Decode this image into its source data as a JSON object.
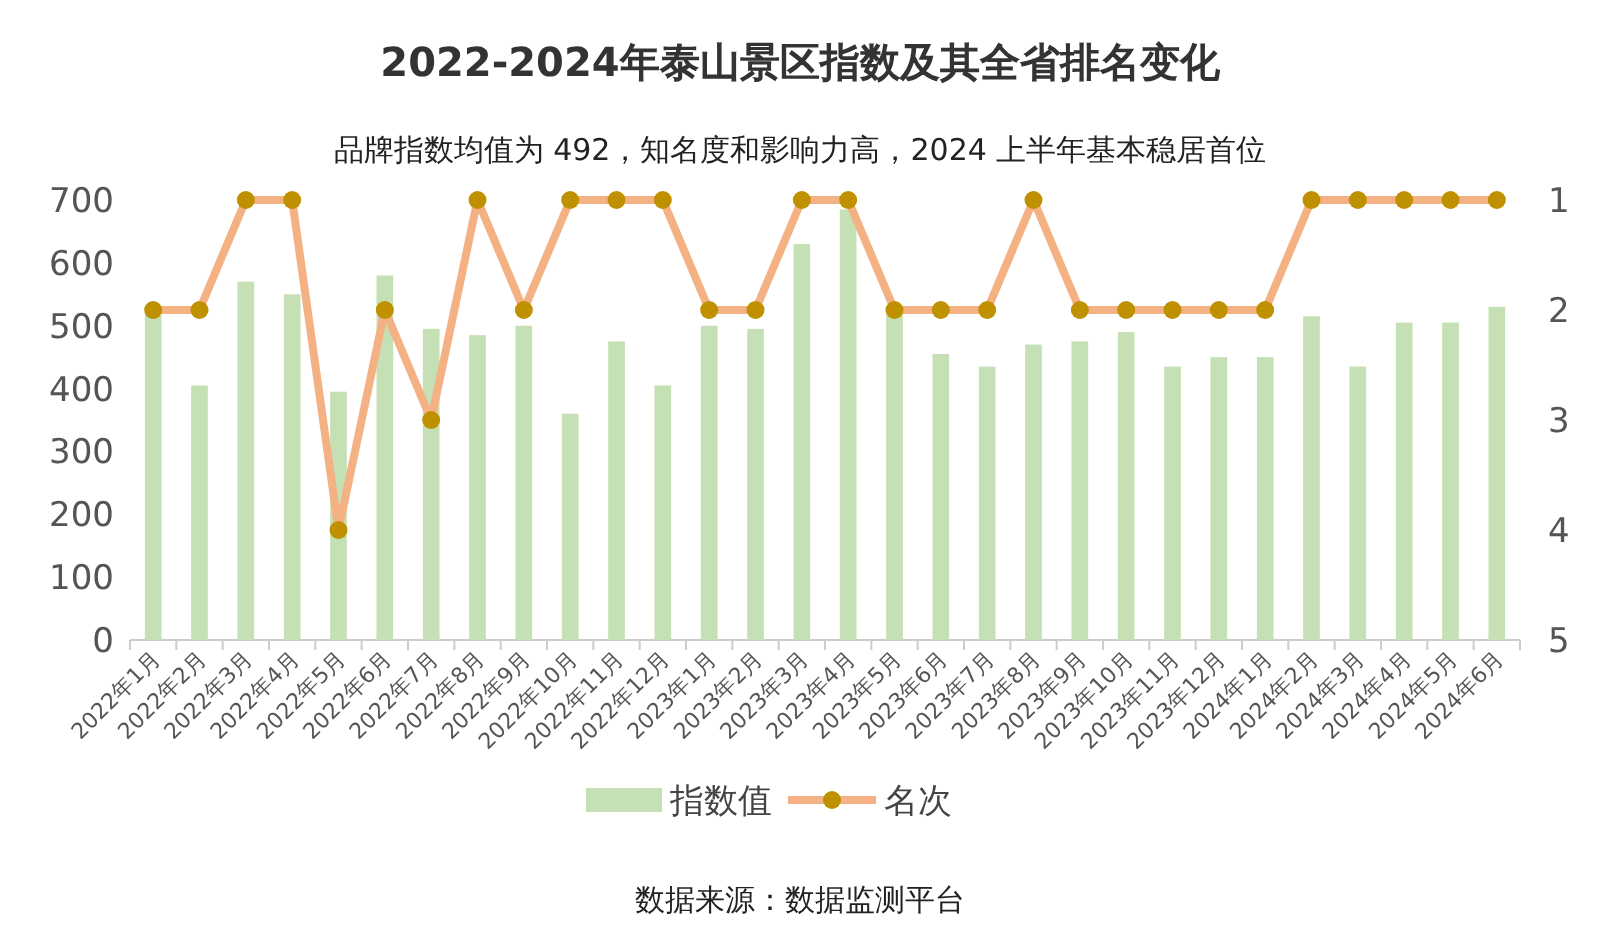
{
  "chart_data": {
    "type": "bar",
    "title": "2022-2024年泰山景区指数及其全省排名变化",
    "subtitle": "品牌指数均值为 492，知名度和影响力高，2024 上半年基本稳居首位",
    "categories": [
      "2022年1月",
      "2022年2月",
      "2022年3月",
      "2022年4月",
      "2022年5月",
      "2022年6月",
      "2022年7月",
      "2022年8月",
      "2022年9月",
      "2022年10月",
      "2022年11月",
      "2022年12月",
      "2023年1月",
      "2023年2月",
      "2023年3月",
      "2023年4月",
      "2023年5月",
      "2023年6月",
      "2023年7月",
      "2023年8月",
      "2023年9月",
      "2023年10月",
      "2023年11月",
      "2023年12月",
      "2024年1月",
      "2024年2月",
      "2024年3月",
      "2024年4月",
      "2024年5月",
      "2024年6月"
    ],
    "series": [
      {
        "name": "指数值",
        "color": "#c5e0b4",
        "values": [
          520,
          405,
          570,
          550,
          395,
          580,
          495,
          485,
          500,
          360,
          475,
          405,
          500,
          495,
          630,
          685,
          520,
          455,
          435,
          470,
          475,
          490,
          435,
          450,
          450,
          515,
          435,
          505,
          505,
          530
        ]
      },
      {
        "name": "名次",
        "type": "line",
        "axis": "y2",
        "color": "#f4b183",
        "marker": "circle",
        "values": [
          2,
          2,
          1,
          1,
          4,
          2,
          3,
          1,
          2,
          1,
          1,
          1,
          2,
          2,
          1,
          1,
          2,
          2,
          2,
          1,
          2,
          2,
          2,
          2,
          2,
          1,
          1,
          1,
          1,
          1
        ]
      }
    ],
    "ylim": [
      0,
      700
    ],
    "yticks": [
      0,
      100,
      200,
      300,
      400,
      500,
      600,
      700
    ],
    "y2lim": [
      5,
      1
    ],
    "y2ticks": [
      1,
      2,
      3,
      4,
      5
    ],
    "grid": false,
    "legend": "bottom",
    "annotations": [
      "数据来源：数据监测平台"
    ]
  }
}
